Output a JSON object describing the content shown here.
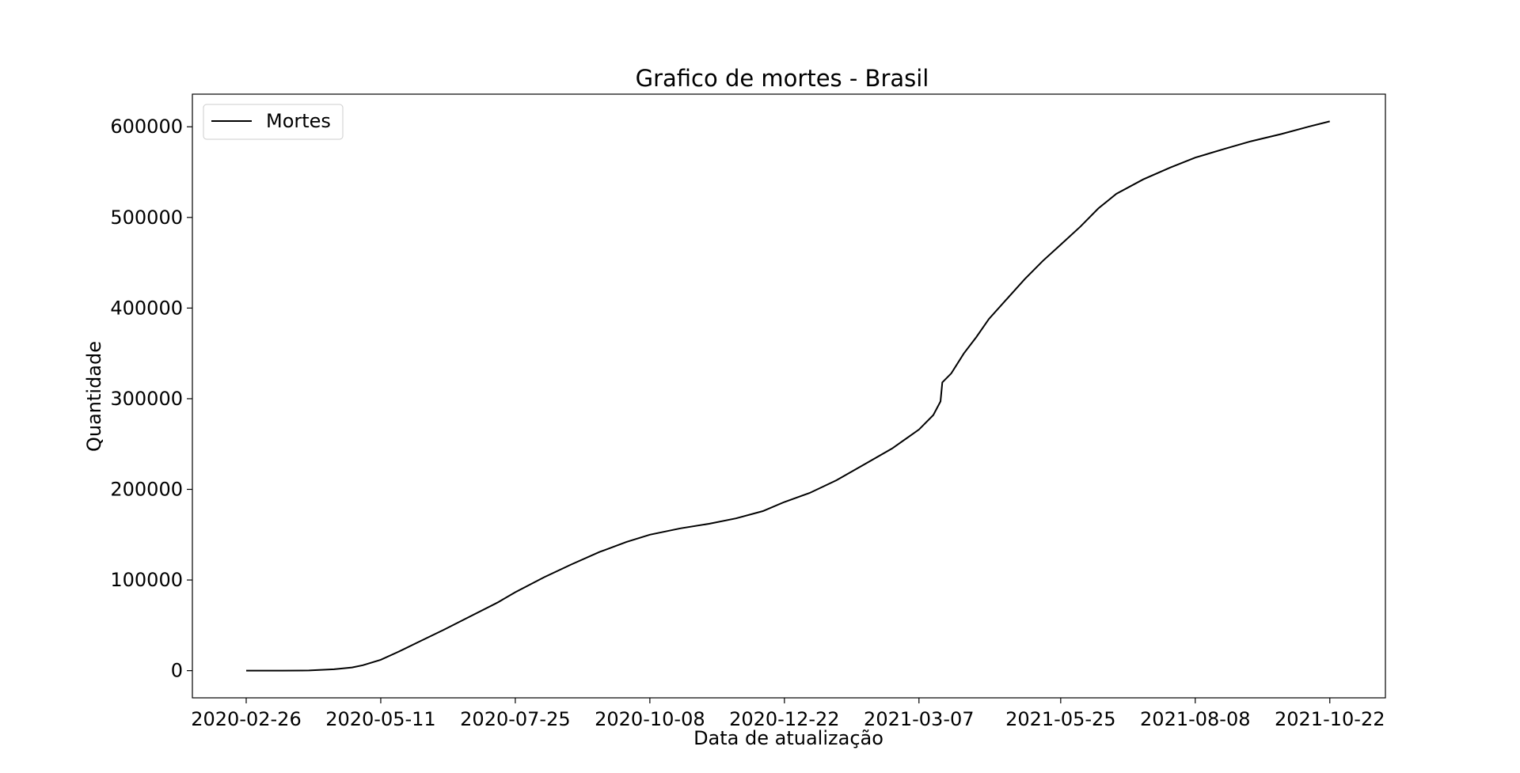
{
  "chart_data": {
    "type": "line",
    "title": "Grafico de mortes - Brasil",
    "xlabel": "Data de atualização",
    "ylabel": "Quantidade",
    "legend": {
      "position": "upper-left"
    },
    "grid": false,
    "x_ticks": [
      "2020-02-26",
      "2020-05-11",
      "2020-07-25",
      "2020-10-08",
      "2020-12-22",
      "2021-03-07",
      "2021-05-25",
      "2021-08-08",
      "2021-10-22"
    ],
    "y_ticks": [
      "0",
      "100000",
      "200000",
      "300000",
      "400000",
      "500000",
      "600000"
    ],
    "ylim": [
      -30000,
      636000
    ],
    "xlim": [
      "2020-01-27",
      "2021-11-22"
    ],
    "series": [
      {
        "name": "Mortes",
        "color": "#000000",
        "x": [
          "2020-02-26",
          "2020-03-17",
          "2020-04-01",
          "2020-04-15",
          "2020-04-25",
          "2020-05-01",
          "2020-05-11",
          "2020-05-21",
          "2020-06-01",
          "2020-06-15",
          "2020-06-30",
          "2020-07-15",
          "2020-07-25",
          "2020-08-10",
          "2020-08-25",
          "2020-09-10",
          "2020-09-25",
          "2020-10-08",
          "2020-10-25",
          "2020-11-10",
          "2020-11-25",
          "2020-12-10",
          "2020-12-22",
          "2021-01-05",
          "2021-01-20",
          "2021-02-05",
          "2021-02-20",
          "2021-03-07",
          "2021-03-15",
          "2021-03-19",
          "2021-03-20",
          "2021-03-25",
          "2021-04-01",
          "2021-04-08",
          "2021-04-15",
          "2021-04-25",
          "2021-05-05",
          "2021-05-15",
          "2021-05-25",
          "2021-06-05",
          "2021-06-15",
          "2021-06-25",
          "2021-07-10",
          "2021-07-25",
          "2021-08-08",
          "2021-08-25",
          "2021-09-08",
          "2021-09-25",
          "2021-10-10",
          "2021-10-22"
        ],
        "values": [
          0,
          0,
          200,
          1500,
          3500,
          6000,
          12000,
          21000,
          31500,
          45000,
          60000,
          75000,
          86500,
          103000,
          117000,
          131000,
          142000,
          150000,
          157000,
          162000,
          168000,
          176000,
          186000,
          196000,
          210000,
          228000,
          245000,
          266000,
          282000,
          297000,
          318000,
          328000,
          350000,
          368000,
          388000,
          410000,
          432000,
          452000,
          470000,
          490000,
          510000,
          526000,
          542000,
          555000,
          566000,
          576000,
          584000,
          592000,
          600000,
          606000
        ]
      }
    ]
  }
}
